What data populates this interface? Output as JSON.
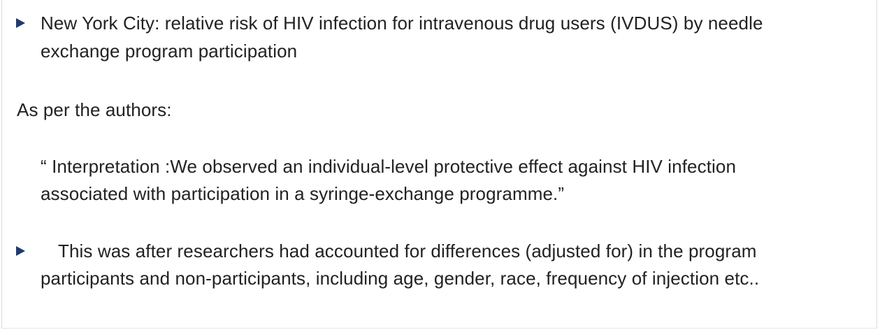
{
  "slide": {
    "bullet1": {
      "icon": "triangle-bullet-icon",
      "line1": "New York City: relative risk of HIV infection for intravenous drug users (IVDUS) by needle",
      "line2": "exchange program participation"
    },
    "authors_intro": "As per the authors:",
    "quote": {
      "line1": "“ Interpretation :We observed an individual-level protective effect against HIV infection",
      "line2": "associated with participation in a syringe-exchange programme.”"
    },
    "bullet2": {
      "icon": "triangle-bullet-icon",
      "line1": "This was after researchers had accounted for differences (adjusted for) in the program",
      "line2": "participants and non-participants, including age, gender, race, frequency of injection etc.."
    },
    "colors": {
      "bullet": "#1f3a6b",
      "text": "#222222",
      "background": "#ffffff"
    }
  }
}
